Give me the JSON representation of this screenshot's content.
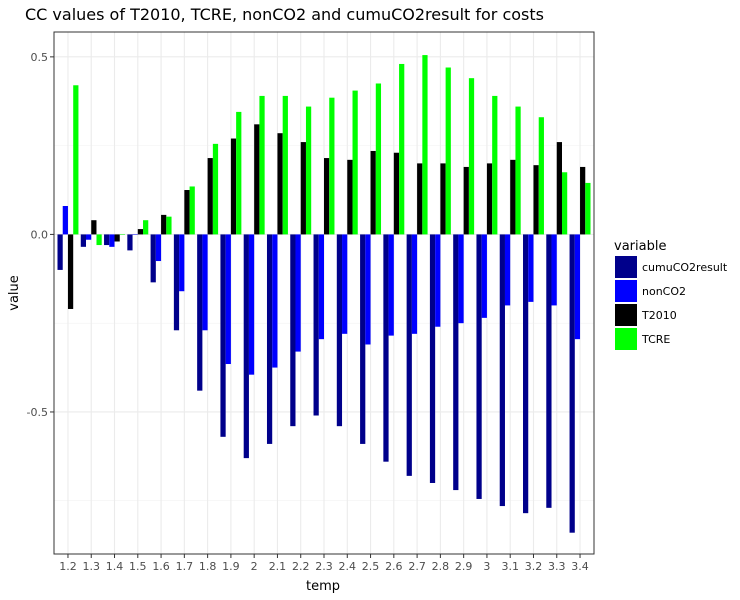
{
  "chart_data": {
    "type": "bar",
    "title": "CC values of T2010, TCRE, nonCO2 and cumuCO2result for costs",
    "xlabel": "temp",
    "ylabel": "value",
    "ylim": [
      -0.9,
      0.57
    ],
    "yticks": [
      0.5,
      0.0,
      -0.5
    ],
    "ytick_labels": [
      "0.5",
      "0.0",
      "-0.5"
    ],
    "grid": true,
    "legend_title": "variable",
    "legend_position": "right",
    "categories": [
      "1.2",
      "1.3",
      "1.4",
      "1.5",
      "1.6",
      "1.7",
      "1.8",
      "1.9",
      "2",
      "2.1",
      "2.2",
      "2.3",
      "2.4",
      "2.5",
      "2.6",
      "2.7",
      "2.8",
      "2.9",
      "3",
      "3.1",
      "3.2",
      "3.3",
      "3.4"
    ],
    "series": [
      {
        "name": "cumuCO2result",
        "color": "#00008b",
        "values": [
          -0.1,
          -0.035,
          -0.03,
          -0.045,
          -0.135,
          -0.27,
          -0.44,
          -0.57,
          -0.63,
          -0.59,
          -0.54,
          -0.51,
          -0.54,
          -0.59,
          -0.64,
          -0.68,
          -0.7,
          -0.72,
          -0.745,
          -0.765,
          -0.785,
          -0.77,
          -0.84
        ]
      },
      {
        "name": "nonCO2",
        "color": "#0000ff",
        "values": [
          0.08,
          -0.015,
          -0.035,
          0.0,
          -0.075,
          -0.16,
          -0.27,
          -0.365,
          -0.395,
          -0.375,
          -0.33,
          -0.295,
          -0.28,
          -0.31,
          -0.285,
          -0.28,
          -0.26,
          -0.25,
          -0.235,
          -0.2,
          -0.19,
          -0.2,
          -0.295
        ]
      },
      {
        "name": "T2010",
        "color": "#000000",
        "values": [
          -0.21,
          0.04,
          -0.02,
          0.015,
          0.055,
          0.125,
          0.215,
          0.27,
          0.31,
          0.285,
          0.26,
          0.215,
          0.21,
          0.235,
          0.23,
          0.2,
          0.2,
          0.19,
          0.2,
          0.21,
          0.195,
          0.26,
          0.19
        ]
      },
      {
        "name": "TCRE",
        "color": "#00ff00",
        "values": [
          0.42,
          -0.03,
          0.0,
          0.04,
          0.05,
          0.135,
          0.255,
          0.345,
          0.39,
          0.39,
          0.36,
          0.385,
          0.405,
          0.425,
          0.48,
          0.505,
          0.47,
          0.44,
          0.39,
          0.36,
          0.33,
          0.175,
          0.145
        ]
      }
    ]
  }
}
